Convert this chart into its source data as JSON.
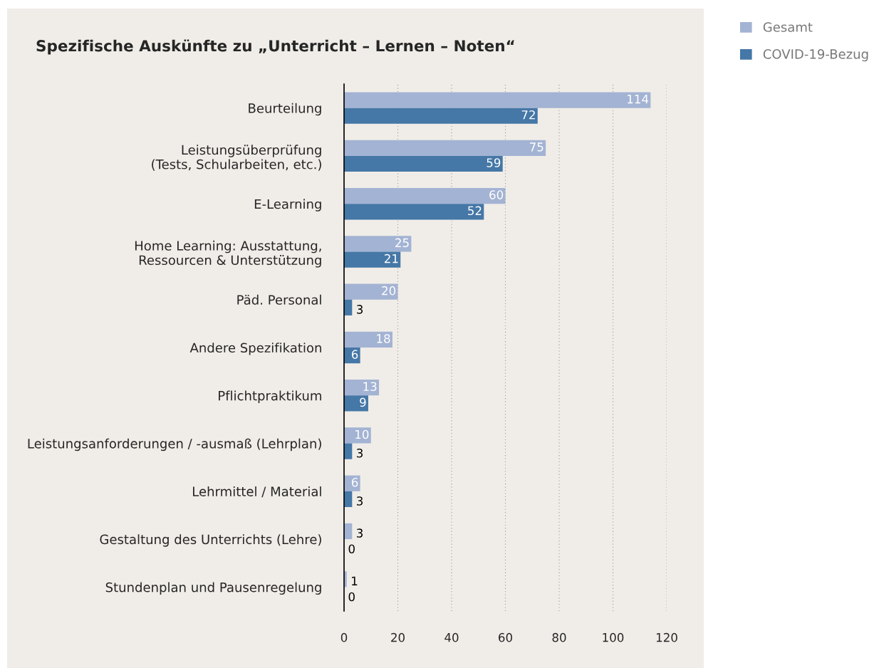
{
  "chart_data": {
    "type": "bar",
    "orientation": "horizontal",
    "title": "Spezifische Auskünfte zu „Unterricht – Lernen – Noten“",
    "categories": [
      "Beurteilung",
      "Leistungsüberprüfung\n(Tests, Schularbeiten, etc.)",
      "E-Learning",
      "Home Learning: Ausstattung,\nRessourcen & Unterstützung",
      "Päd. Personal",
      "Andere Spezifikation",
      "Pflichtpraktikum",
      "Leistungsanforderungen / -ausmaß (Lehrplan)",
      "Lehrmittel / Material",
      "Gestaltung des Unterrichts (Lehre)",
      "Stundenplan und Pausenregelung"
    ],
    "series": [
      {
        "name": "Gesamt",
        "color": "#a3b3d3",
        "values": [
          114,
          75,
          60,
          25,
          20,
          18,
          13,
          10,
          6,
          3,
          1
        ]
      },
      {
        "name": "COVID-19-Bezug",
        "color": "#4577a7",
        "values": [
          72,
          59,
          52,
          21,
          3,
          6,
          9,
          3,
          3,
          0,
          0
        ]
      }
    ],
    "xlim": [
      0,
      120
    ],
    "xticks": [
      0,
      20,
      40,
      60,
      80,
      100,
      120
    ],
    "grid": "x",
    "legend": "right",
    "data_labels": true
  }
}
